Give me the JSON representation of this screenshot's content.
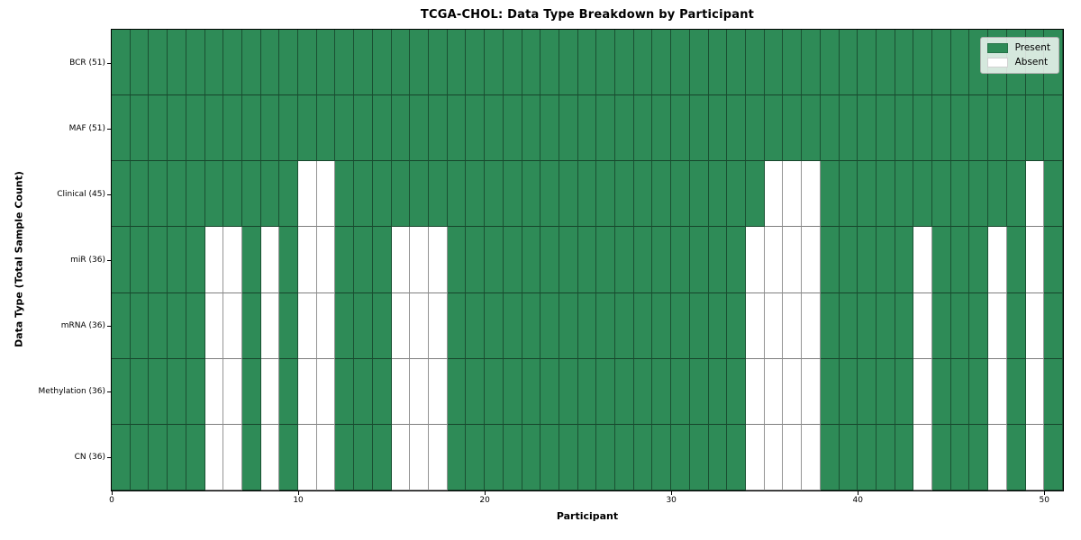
{
  "chart_data": {
    "type": "heatmap",
    "title": "TCGA-CHOL: Data Type Breakdown by Participant",
    "xlabel": "Participant",
    "ylabel": "Data Type (Total Sample Count)",
    "n_participants": 51,
    "xlim": [
      0,
      51
    ],
    "x_ticks": [
      0,
      10,
      20,
      30,
      40,
      50
    ],
    "grid": true,
    "legend_position": "upper right",
    "legend": [
      {
        "label": "Present",
        "color": "#2e8b57"
      },
      {
        "label": "Absent",
        "color": "#ffffff"
      }
    ],
    "colors": {
      "present": "#2e8b57",
      "absent": "#ffffff",
      "spine": "#000000"
    },
    "rows": [
      {
        "label": "BCR (51)",
        "present_count": 51,
        "absent_participants": []
      },
      {
        "label": "MAF (51)",
        "present_count": 51,
        "absent_participants": []
      },
      {
        "label": "Clinical (45)",
        "present_count": 45,
        "absent_participants": [
          10,
          11,
          35,
          36,
          37,
          49
        ]
      },
      {
        "label": "miR (36)",
        "present_count": 36,
        "absent_participants": [
          5,
          6,
          8,
          10,
          11,
          15,
          16,
          17,
          34,
          35,
          36,
          37,
          43,
          47,
          49
        ]
      },
      {
        "label": "mRNA (36)",
        "present_count": 36,
        "absent_participants": [
          5,
          6,
          8,
          10,
          11,
          15,
          16,
          17,
          34,
          35,
          36,
          37,
          43,
          47,
          49
        ]
      },
      {
        "label": "Methylation (36)",
        "present_count": 36,
        "absent_participants": [
          5,
          6,
          8,
          10,
          11,
          15,
          16,
          17,
          34,
          35,
          36,
          37,
          43,
          47,
          49
        ]
      },
      {
        "label": "CN (36)",
        "present_count": 36,
        "absent_participants": [
          5,
          6,
          8,
          10,
          11,
          15,
          16,
          17,
          34,
          35,
          36,
          37,
          43,
          47,
          49
        ]
      }
    ]
  }
}
